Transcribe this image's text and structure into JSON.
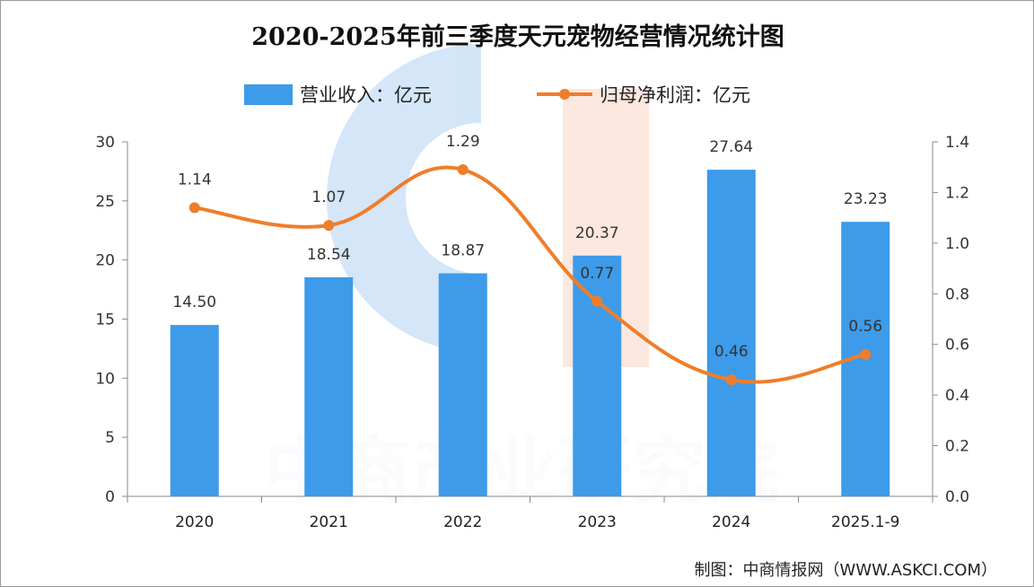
{
  "chart_data": {
    "type": "bar",
    "title": "2020-2025年前三季度天元宠物经营情况统计图",
    "categories": [
      "2020",
      "2021",
      "2022",
      "2023",
      "2024",
      "2025.1-9"
    ],
    "series": [
      {
        "name": "营业收入：亿元",
        "type": "bar",
        "axis": "left",
        "values": [
          14.5,
          18.54,
          18.87,
          20.37,
          27.64,
          23.23
        ],
        "labels": [
          "14.50",
          "18.54",
          "18.87",
          "20.37",
          "27.64",
          "23.23"
        ],
        "color": "#3d9be9"
      },
      {
        "name": "归母净利润：亿元",
        "type": "line",
        "axis": "right",
        "values": [
          1.14,
          1.07,
          1.29,
          0.77,
          0.46,
          0.56
        ],
        "labels": [
          "1.14",
          "1.07",
          "1.29",
          "0.77",
          "0.46",
          "0.56"
        ],
        "color": "#f07d2a"
      }
    ],
    "y_left": {
      "ylim": [
        0,
        30
      ],
      "ticks": [
        "0",
        "5",
        "10",
        "15",
        "20",
        "25",
        "30"
      ]
    },
    "y_right": {
      "ylim": [
        0,
        1.4
      ],
      "ticks": [
        "0.0",
        "0.2",
        "0.4",
        "0.6",
        "0.8",
        "1.0",
        "1.2",
        "1.4"
      ]
    },
    "legend_placement": "top-center",
    "grid": false
  },
  "watermark": {
    "text": "中商产业研究院",
    "colors": [
      "#3d8fe0",
      "#f39a6b"
    ]
  },
  "source": "制图：中商情报网（WWW.ASKCI.COM）"
}
